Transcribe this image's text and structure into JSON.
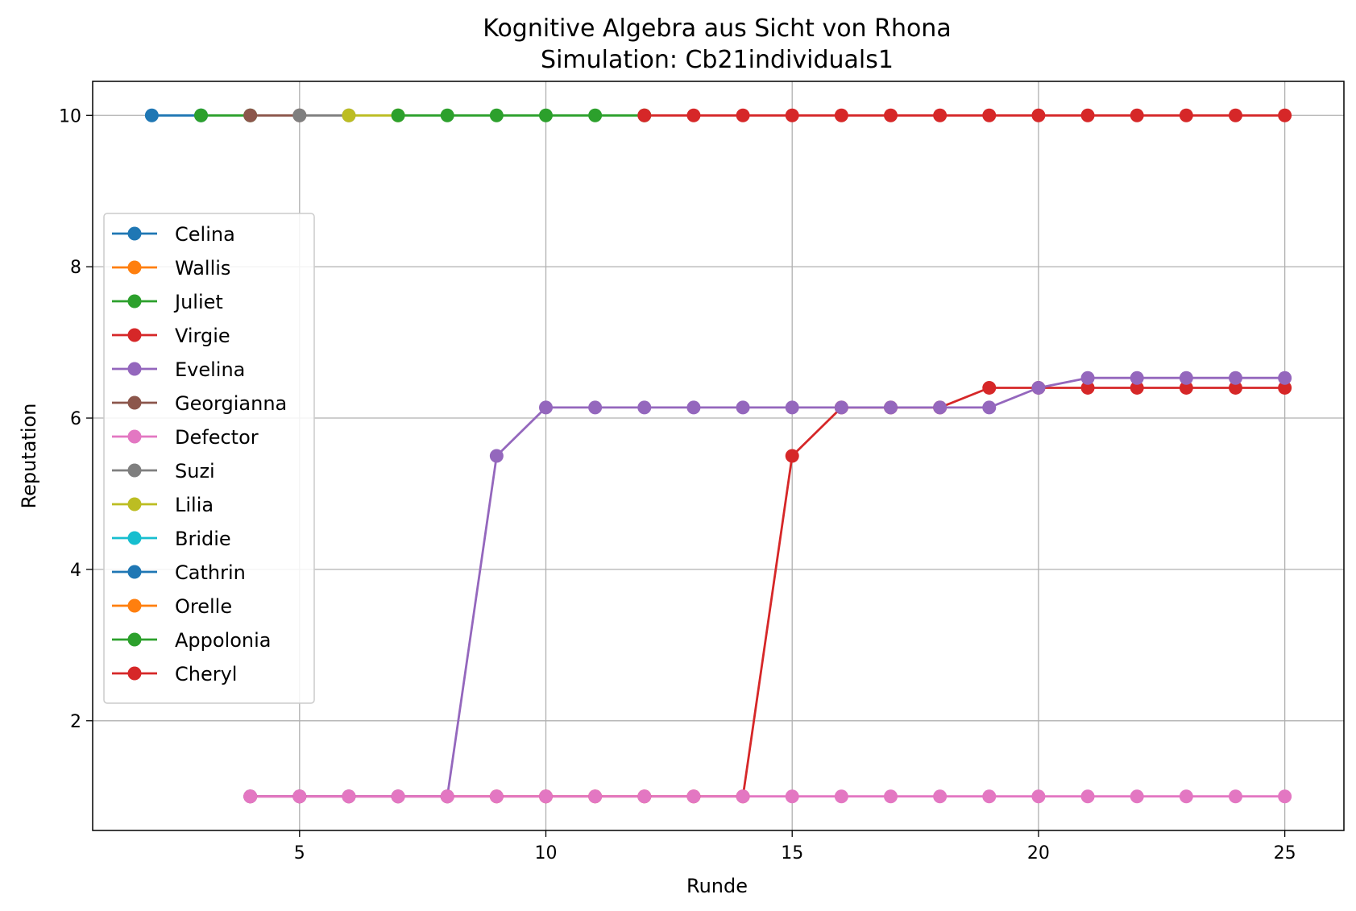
{
  "chart_data": {
    "type": "line",
    "title": "Kognitive Algebra aus Sicht von Rhona",
    "subtitle": "Simulation: Cb21individuals1",
    "xlabel": "Runde",
    "ylabel": "Reputation",
    "xlim": [
      0.8,
      26.2
    ],
    "ylim": [
      0.55,
      10.45
    ],
    "xticks": [
      5,
      10,
      15,
      20,
      25
    ],
    "yticks": [
      2,
      4,
      6,
      8,
      10
    ],
    "grid": true,
    "legend_position": "center-left",
    "series": [
      {
        "name": "Celina",
        "color": "#1f77b4",
        "x": [
          2,
          3
        ],
        "y": [
          10,
          10
        ]
      },
      {
        "name": "Wallis",
        "color": "#ff7f0e",
        "x": [],
        "y": []
      },
      {
        "name": "Juliet",
        "color": "#2ca02c",
        "x": [
          3,
          4
        ],
        "y": [
          10,
          10
        ]
      },
      {
        "name": "Virgie",
        "color": "#d62728",
        "x": [
          4,
          5,
          6,
          7,
          8,
          9,
          10,
          11,
          12,
          13,
          14,
          15,
          16,
          17,
          18,
          19,
          20,
          21,
          22,
          23,
          24,
          25
        ],
        "y": [
          1,
          1,
          1,
          1,
          1,
          1,
          1,
          1,
          1,
          1,
          1,
          5.5,
          6.14,
          6.14,
          6.14,
          6.4,
          6.4,
          6.4,
          6.4,
          6.4,
          6.4,
          6.4
        ]
      },
      {
        "name": "Evelina",
        "color": "#9467bd",
        "x": [
          4,
          5,
          6,
          7,
          8,
          9,
          10,
          11,
          12,
          13,
          14,
          15,
          16,
          17,
          18,
          19,
          20,
          21,
          22,
          23,
          24,
          25
        ],
        "y": [
          1,
          1,
          1,
          1,
          1,
          5.5,
          6.14,
          6.14,
          6.14,
          6.14,
          6.14,
          6.14,
          6.14,
          6.14,
          6.14,
          6.14,
          6.4,
          6.53,
          6.53,
          6.53,
          6.53,
          6.53
        ]
      },
      {
        "name": "Georgianna",
        "color": "#8c564b",
        "x": [
          4,
          5
        ],
        "y": [
          10,
          10
        ]
      },
      {
        "name": "Defector",
        "color": "#e377c2",
        "x": [
          4,
          5,
          6,
          7,
          8,
          9,
          10,
          11,
          12,
          13,
          14,
          15,
          16,
          17,
          18,
          19,
          20,
          21,
          22,
          23,
          24,
          25
        ],
        "y": [
          1,
          1,
          1,
          1,
          1,
          1,
          1,
          1,
          1,
          1,
          1,
          1,
          1,
          1,
          1,
          1,
          1,
          1,
          1,
          1,
          1,
          1
        ]
      },
      {
        "name": "Suzi",
        "color": "#7f7f7f",
        "x": [
          5,
          6
        ],
        "y": [
          10,
          10
        ]
      },
      {
        "name": "Lilia",
        "color": "#bcbd22",
        "x": [
          6,
          7
        ],
        "y": [
          10,
          10
        ]
      },
      {
        "name": "Bridie",
        "color": "#17becf",
        "x": [],
        "y": []
      },
      {
        "name": "Cathrin",
        "color": "#1f77b4",
        "x": [],
        "y": []
      },
      {
        "name": "Orelle",
        "color": "#ff7f0e",
        "x": [],
        "y": []
      },
      {
        "name": "Appolonia",
        "color": "#2ca02c",
        "x": [
          7,
          8,
          9,
          10,
          11,
          12
        ],
        "y": [
          10,
          10,
          10,
          10,
          10,
          10
        ]
      },
      {
        "name": "Cheryl",
        "color": "#d62728",
        "x": [
          12,
          13,
          14,
          15,
          16,
          17,
          18,
          19,
          20,
          21,
          22,
          23,
          24,
          25
        ],
        "y": [
          10,
          10,
          10,
          10,
          10,
          10,
          10,
          10,
          10,
          10,
          10,
          10,
          10,
          10
        ]
      }
    ]
  }
}
